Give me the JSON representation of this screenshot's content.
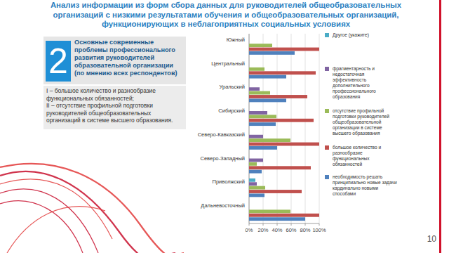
{
  "slide": {
    "title": "Анализ информации из форм сбора данных для руководителей общеобразовательных организаций с низкими результатами обучения и общеобразовательных организаций, функционирующих в неблагоприятных социальных условиях",
    "panel": {
      "number": "2",
      "heading": "Основные современные проблемы профессионального развития руководителей образовательной организации (по мнению всех респондентов)",
      "items": [
        "I – большое количество и разнообразие функциональных обязанностей;",
        "II – отсутствие профильной подготовки руководителей общеобразовательных организаций в системе высшего образования."
      ]
    },
    "page_number": "10"
  },
  "chart_data": {
    "type": "bar",
    "orientation": "horizontal",
    "categories": [
      "Южный",
      "Центральный",
      "Уральский",
      "Сибирский",
      "Северо-Кавказский",
      "Северо-Западный",
      "Приволжский",
      "Дальневосточный"
    ],
    "series": [
      {
        "name": "Другое (укажите)",
        "color": "#4bacc6",
        "values": [
          0,
          0,
          0,
          0,
          0,
          0,
          9,
          0
        ]
      },
      {
        "name": "фрагментарность и недостаточная эффективность дополнительного профессионального образования",
        "color": "#8064a2",
        "values": [
          0,
          0,
          15,
          26,
          20,
          20,
          11,
          0
        ]
      },
      {
        "name": "отсутствие профильной подготовки руководителей общеобразовательной организации в системе высшего образования",
        "color": "#9bbb59",
        "values": [
          33,
          22,
          30,
          39,
          59,
          11,
          23,
          59
        ]
      },
      {
        "name": "большое количество и разнообразие функциональных обязанностей",
        "color": "#c0504d",
        "values": [
          100,
          95,
          83,
          92,
          100,
          88,
          75,
          100
        ]
      },
      {
        "name": "необходимость решать принципиально новые задачи кардинально новыми способами",
        "color": "#4f81bd",
        "values": [
          65,
          53,
          53,
          38,
          40,
          18,
          22,
          80
        ]
      }
    ],
    "xlim": [
      0,
      100
    ],
    "xticks": [
      {
        "value": 0,
        "label": "0%"
      },
      {
        "value": 20,
        "label": "20%"
      },
      {
        "value": 40,
        "label": "40%"
      },
      {
        "value": 60,
        "label": "60%"
      },
      {
        "value": 80,
        "label": "80%"
      },
      {
        "value": 100,
        "label": "100%"
      }
    ],
    "grid": true,
    "legend": "right"
  }
}
